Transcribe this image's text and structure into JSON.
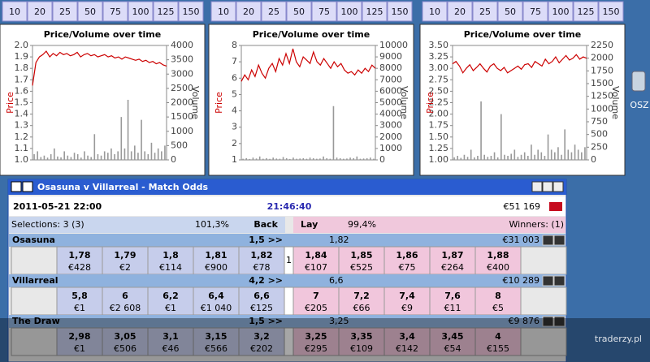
{
  "panels": [
    {
      "buttons": [
        10,
        20,
        25,
        50,
        75,
        100,
        125,
        150
      ],
      "chart": {
        "type": "line",
        "title": "Price/Volume over time",
        "ylabel": "Price",
        "y2label": "Volume",
        "ylim": [
          1,
          2
        ],
        "yticks": [
          {
            "value": 1,
            "label": "1.0"
          },
          {
            "value": 1.1,
            "label": "1.1"
          },
          {
            "value": 1.2,
            "label": "1.2"
          },
          {
            "value": 1.3,
            "label": "1.3"
          },
          {
            "value": 1.4,
            "label": "1.4"
          },
          {
            "value": 1.5,
            "label": "1.5"
          },
          {
            "value": 1.6,
            "label": "1.6"
          },
          {
            "value": 1.7,
            "label": "1.7"
          },
          {
            "value": 1.8,
            "label": "1.8"
          },
          {
            "value": 1.9,
            "label": "1.9"
          },
          {
            "value": 2,
            "label": "2.0"
          }
        ],
        "y2lim": [
          0,
          4000
        ],
        "y2ticks": [
          0,
          500,
          1000,
          1500,
          2000,
          2500,
          3000,
          3500,
          4000
        ],
        "price": [
          1.65,
          1.85,
          1.9,
          1.92,
          1.95,
          1.9,
          1.93,
          1.91,
          1.94,
          1.92,
          1.93,
          1.91,
          1.92,
          1.94,
          1.9,
          1.92,
          1.93,
          1.91,
          1.92,
          1.9,
          1.91,
          1.92,
          1.9,
          1.91,
          1.89,
          1.9,
          1.88,
          1.9,
          1.89,
          1.88,
          1.87,
          1.88,
          1.86,
          1.87,
          1.85,
          1.86,
          1.84,
          1.85,
          1.83,
          1.82
        ],
        "volume": [
          200,
          300,
          100,
          150,
          80,
          200,
          400,
          120,
          90,
          300,
          150,
          100,
          250,
          200,
          80,
          300,
          150,
          100,
          900,
          200,
          150,
          300,
          250,
          400,
          200,
          300,
          1500,
          400,
          2100,
          300,
          500,
          250,
          1400,
          300,
          200,
          600,
          250,
          400,
          300,
          500
        ]
      }
    },
    {
      "buttons": [
        10,
        20,
        25,
        50,
        75,
        100,
        125,
        150
      ],
      "chart": {
        "type": "line",
        "title": "Price/Volume over time",
        "ylabel": "Price",
        "y2label": "Volume",
        "ylim": [
          1,
          8
        ],
        "yticks": [
          1,
          2,
          3,
          4,
          5,
          6,
          7,
          8
        ],
        "y2lim": [
          0,
          10000
        ],
        "y2ticks": [
          0,
          1000,
          2000,
          3000,
          4000,
          5000,
          6000,
          7000,
          8000,
          9000,
          10000
        ],
        "price": [
          5.8,
          6.2,
          5.9,
          6.5,
          6.1,
          6.8,
          6.3,
          6.0,
          6.6,
          6.9,
          6.4,
          7.2,
          6.8,
          7.5,
          6.9,
          7.8,
          7.0,
          6.7,
          7.3,
          7.1,
          6.9,
          7.6,
          7.0,
          6.8,
          7.2,
          6.9,
          6.6,
          7.0,
          6.7,
          6.9,
          6.5,
          6.3,
          6.4,
          6.2,
          6.5,
          6.3,
          6.6,
          6.4,
          6.8,
          6.6
        ],
        "volume": [
          100,
          150,
          80,
          200,
          120,
          300,
          100,
          150,
          90,
          200,
          120,
          100,
          250,
          150,
          80,
          200,
          100,
          120,
          150,
          100,
          200,
          150,
          100,
          120,
          300,
          150,
          100,
          4700,
          200,
          150,
          100,
          120,
          200,
          150,
          300,
          100,
          120,
          150,
          200,
          100
        ]
      }
    },
    {
      "buttons": [
        10,
        20,
        25,
        50,
        75,
        100,
        125,
        150
      ],
      "chart": {
        "type": "line",
        "title": "Price/Volume over time",
        "ylabel": "Price",
        "y2label": "Volume",
        "ylim": [
          1,
          3.5
        ],
        "yticks": [
          {
            "value": 1,
            "label": "1.00"
          },
          {
            "value": 1.25,
            "label": "1.25"
          },
          {
            "value": 1.5,
            "label": "1.50"
          },
          {
            "value": 1.75,
            "label": "1.75"
          },
          {
            "value": 2,
            "label": "2.00"
          },
          {
            "value": 2.25,
            "label": "2.25"
          },
          {
            "value": 2.5,
            "label": "2.50"
          },
          {
            "value": 2.75,
            "label": "2.75"
          },
          {
            "value": 3,
            "label": "3.00"
          },
          {
            "value": 3.25,
            "label": "3.25"
          },
          {
            "value": 3.5,
            "label": "3.50"
          }
        ],
        "y2lim": [
          0,
          2250
        ],
        "y2ticks": [
          0,
          250,
          500,
          750,
          1000,
          1250,
          1500,
          1750,
          2000,
          2250
        ],
        "price": [
          3.1,
          3.15,
          3.05,
          2.9,
          3.0,
          3.08,
          2.95,
          3.02,
          3.1,
          3.0,
          2.92,
          3.05,
          3.1,
          3.0,
          2.95,
          3.02,
          2.9,
          2.95,
          3.0,
          3.05,
          2.98,
          3.08,
          3.1,
          3.02,
          3.15,
          3.1,
          3.05,
          3.2,
          3.1,
          3.15,
          3.25,
          3.12,
          3.2,
          3.28,
          3.18,
          3.22,
          3.3,
          3.2,
          3.25,
          3.22
        ],
        "volume": [
          50,
          80,
          40,
          100,
          60,
          200,
          50,
          80,
          1150,
          100,
          60,
          80,
          150,
          50,
          900,
          100,
          80,
          120,
          200,
          60,
          100,
          150,
          80,
          300,
          100,
          200,
          150,
          80,
          500,
          200,
          150,
          250,
          100,
          600,
          200,
          150,
          300,
          200,
          150,
          250
        ]
      }
    }
  ],
  "window": {
    "title": "Osasuna v Villarreal - Match Odds",
    "date": "2011-05-21  22:00",
    "clock": "21:46:40",
    "total": "€51 169",
    "selections": "Selections: 3 (3)",
    "back_pct": "101,3%",
    "back": "Back",
    "lay": "Lay",
    "lay_pct": "99,4%",
    "winners": "Winners: (1)",
    "runners": [
      {
        "name": "Osasuna",
        "handicap": "1,5 >>",
        "last": "1,82",
        "matched": "€31 003",
        "mid": "1",
        "back": [
          [
            "1,78",
            "€428"
          ],
          [
            "1,79",
            "€2"
          ],
          [
            "1,8",
            "€114"
          ],
          [
            "1,81",
            "€900"
          ],
          [
            "1,82",
            "€78"
          ]
        ],
        "lay": [
          [
            "1,84",
            "€107"
          ],
          [
            "1,85",
            "€525"
          ],
          [
            "1,86",
            "€75"
          ],
          [
            "1,87",
            "€264"
          ],
          [
            "1,88",
            "€400"
          ]
        ]
      },
      {
        "name": "Villarreal",
        "handicap": "4,2 >>",
        "last": "6,6",
        "matched": "€10 289",
        "back": [
          [
            "5,8",
            "€1"
          ],
          [
            "6",
            "€2 608"
          ],
          [
            "6,2",
            "€1"
          ],
          [
            "6,4",
            "€1 040"
          ],
          [
            "6,6",
            "€125"
          ]
        ],
        "lay": [
          [
            "7",
            "€205"
          ],
          [
            "7,2",
            "€66"
          ],
          [
            "7,4",
            "€9"
          ],
          [
            "7,6",
            "€11"
          ],
          [
            "8",
            "€5"
          ]
        ]
      },
      {
        "name": "The Draw",
        "handicap": "1,5 >>",
        "last": "3,25",
        "matched": "€9 876",
        "back": [
          [
            "2,98",
            "€1"
          ],
          [
            "3,05",
            "€506"
          ],
          [
            "3,1",
            "€46"
          ],
          [
            "3,15",
            "€566"
          ],
          [
            "3,2",
            "€202"
          ]
        ],
        "lay": [
          [
            "3,25",
            "€295"
          ],
          [
            "3,35",
            "€109"
          ],
          [
            "3,4",
            "€142"
          ],
          [
            "3,45",
            "€54"
          ],
          [
            "4",
            "€155"
          ]
        ]
      }
    ]
  },
  "desktop": {
    "icon_label": "OSZ"
  },
  "watermark": "traderzy.pl"
}
